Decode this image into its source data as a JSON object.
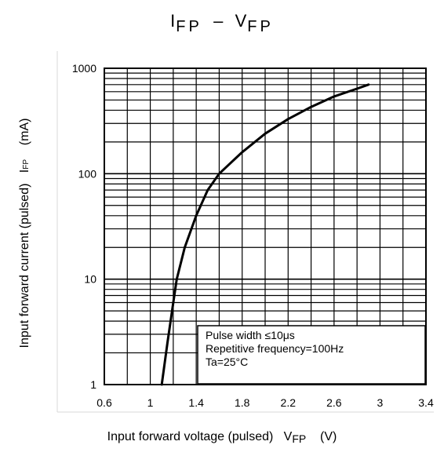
{
  "chart_data": {
    "type": "line",
    "title_main": "I",
    "title_sub": "FP",
    "title_dash": "–",
    "title_main2": "V",
    "title_sub2": "FP",
    "xlabel_text": "Input forward voltage (pulsed)",
    "xlabel_symbol": "V",
    "xlabel_symbol_sub": "FP",
    "xlabel_unit": "(V)",
    "ylabel_text": "Input forward current (pulsed)",
    "ylabel_symbol": "I",
    "ylabel_symbol_sub": "FP",
    "ylabel_unit": "(mA)",
    "xlim": [
      0.6,
      3.4
    ],
    "ylim": [
      1,
      1000
    ],
    "yscale": "log",
    "grid": true,
    "x_ticks": [
      "0.6",
      "1",
      "1.4",
      "1.8",
      "2.2",
      "2.6",
      "3",
      "3.4"
    ],
    "y_ticks": [
      "1",
      "10",
      "100",
      "1000"
    ],
    "series": [
      {
        "x": [
          1.1,
          1.15,
          1.2,
          1.23,
          1.3,
          1.4,
          1.5,
          1.6,
          1.8,
          2.0,
          2.2,
          2.4,
          2.6,
          2.8,
          2.9
        ],
        "y": [
          1,
          2.5,
          6,
          10,
          20,
          40,
          70,
          100,
          160,
          240,
          330,
          430,
          540,
          640,
          700
        ]
      }
    ],
    "annotation": [
      "Pulse width ≤10μs",
      "Repetitive frequency=100Hz",
      "Ta=25°C"
    ]
  }
}
